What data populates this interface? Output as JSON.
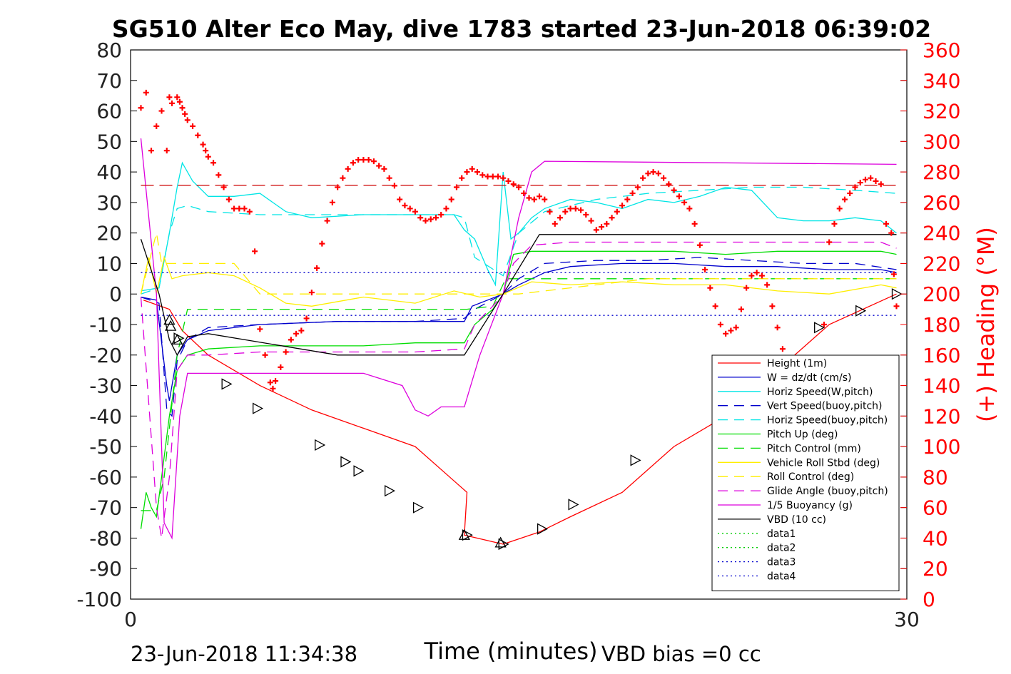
{
  "chart_data": {
    "type": "line",
    "title": "SG510 Alter Eco May, dive 1783 started 23-Jun-2018 06:39:02",
    "xlabel": "Time (minutes)",
    "ylabel_right": "(+) Heading (°M)",
    "xlim": [
      0,
      30
    ],
    "ylim_left": [
      -100,
      80
    ],
    "ylim_right": [
      0,
      360
    ],
    "x_ticks": [
      "0",
      "30"
    ],
    "y_ticks_left": [
      "80",
      "70",
      "60",
      "50",
      "40",
      "30",
      "20",
      "10",
      "0",
      "-10",
      "-20",
      "-30",
      "-40",
      "-50",
      "-60",
      "-70",
      "-80",
      "-90",
      "-100"
    ],
    "y_ticks_right": [
      "360",
      "340",
      "320",
      "300",
      "280",
      "260",
      "240",
      "220",
      "200",
      "180",
      "160",
      "140",
      "120",
      "100",
      "80",
      "60",
      "40",
      "20",
      "0"
    ],
    "footer_left": "23-Jun-2018 11:34:38",
    "footer_right": "VBD bias =0 cc",
    "colors": {
      "height": "#ff0000",
      "w": "#0000cc",
      "horiz_speed": "#00e5e5",
      "pitch_up": "#00dd00",
      "vehicle_roll": "#ffee00",
      "glide_angle": "#dd00dd",
      "buoyancy": "#dd00dd",
      "vbd": "#000000",
      "heading": "#ff0000",
      "data_blue": "#0000cc",
      "data_green": "#00cc00"
    },
    "series": [
      {
        "name": "Height (1m)",
        "color": "#ff0000",
        "dash": "none",
        "x": [
          0.5,
          1.5,
          2.0,
          3.0,
          5.0,
          7.0,
          9.0,
          11.0,
          13.0,
          12.9,
          14.4,
          15.8,
          17.0,
          19.0,
          21.0,
          23.0,
          25.0,
          27.0,
          29.6
        ],
        "y": [
          -2,
          -5,
          -12,
          -20,
          -30,
          -38,
          -44,
          -50,
          -65,
          -79,
          -82,
          -78,
          -73,
          -65,
          -50,
          -40,
          -25,
          -10,
          0
        ]
      },
      {
        "name": "W = dz/dt (cm/s)",
        "color": "#0000cc",
        "dash": "none",
        "x": [
          0.4,
          1.0,
          1.4,
          1.5,
          1.8,
          2.2,
          3.0,
          5.0,
          8.0,
          10.0,
          12.0,
          12.9,
          13.2,
          14.4,
          15.0,
          16.0,
          17.0,
          19.0,
          21.0,
          23.0,
          25.0,
          27.0,
          29.0,
          29.6
        ],
        "y": [
          -1,
          -2,
          -30,
          -35,
          -20,
          -15,
          -12,
          -10,
          -9,
          -9,
          -9,
          -9,
          -4,
          0,
          3,
          7,
          9,
          10,
          10,
          9,
          9,
          8,
          8,
          7
        ]
      },
      {
        "name": "Horiz Speed(W,pitch)",
        "color": "#00e5e5",
        "dash": "none",
        "x": [
          0.4,
          1.1,
          1.5,
          1.8,
          2.0,
          2.4,
          3.0,
          4.0,
          5.0,
          6.0,
          7.0,
          9.0,
          11.0,
          12.5,
          12.9,
          13.3,
          13.8,
          14.1,
          14.4,
          14.7,
          15.0,
          15.5,
          16.0,
          17.0,
          18.0,
          19.0,
          20.0,
          21.0,
          22.0,
          23.0,
          24.0,
          25.0,
          26.0,
          27.0,
          28.0,
          29.0,
          29.6
        ],
        "y": [
          1,
          2,
          20,
          35,
          43,
          37,
          32,
          32,
          33,
          27,
          25,
          26,
          26,
          26,
          21,
          18,
          8,
          3,
          40,
          18,
          20,
          25,
          28,
          31,
          30,
          28,
          31,
          30,
          32,
          35,
          34,
          25,
          24,
          24,
          25,
          24,
          20
        ]
      },
      {
        "name": "Vert Speed(buoy,pitch)",
        "color": "#0000cc",
        "dash": "dashed",
        "x": [
          0.4,
          1.1,
          1.4,
          1.6,
          1.8,
          2.2,
          3.0,
          5.0,
          8.0,
          11.0,
          12.9,
          13.3,
          14.4,
          15.0,
          16.0,
          18.0,
          20.0,
          22.0,
          24.0,
          26.0,
          28.0,
          29.6
        ],
        "y": [
          -1,
          -3,
          -38,
          -40,
          -22,
          -15,
          -11,
          -10,
          -9,
          -9,
          -8,
          -5,
          0,
          5,
          10,
          11,
          11,
          12,
          11,
          10,
          10,
          8
        ]
      },
      {
        "name": "Horiz Speed(buoy,pitch)",
        "color": "#00e5e5",
        "dash": "dashed",
        "x": [
          0.4,
          1.1,
          1.5,
          1.8,
          2.2,
          3.0,
          5.0,
          7.0,
          9.0,
          11.0,
          12.5,
          12.9,
          13.3,
          14.4,
          15.0,
          16.0,
          18.0,
          20.0,
          22.0,
          24.0,
          26.0,
          28.0,
          29.6
        ],
        "y": [
          0,
          2,
          20,
          28,
          29,
          27,
          26,
          26,
          26,
          26,
          26,
          25,
          12,
          6,
          20,
          27,
          31,
          33,
          34,
          35,
          35,
          34,
          33
        ]
      },
      {
        "name": "Pitch Up (deg)",
        "color": "#00dd00",
        "dash": "none",
        "x": [
          0.4,
          0.6,
          0.8,
          1.0,
          1.2,
          1.5,
          1.8,
          2.2,
          3.0,
          5.0,
          7.0,
          9.0,
          11.0,
          12.9,
          13.3,
          14.0,
          14.4,
          14.8,
          15.5,
          17.0,
          19.0,
          21.0,
          23.0,
          25.0,
          27.0,
          29.0,
          29.6
        ],
        "y": [
          -77,
          -65,
          -70,
          -73,
          -60,
          -40,
          -25,
          -20,
          -18,
          -17,
          -17,
          -17,
          -16,
          -16,
          -10,
          -5,
          0,
          13,
          14,
          14,
          14,
          14,
          13,
          14,
          14,
          14,
          13
        ]
      },
      {
        "name": "Pitch Control (mm)",
        "color": "#00dd00",
        "dash": "dashed",
        "x": [
          0.4,
          1.0,
          1.3,
          1.8,
          2.2,
          13.0,
          14.0,
          14.5,
          29.6
        ],
        "y": [
          -71,
          -71,
          -60,
          -20,
          -5,
          -5,
          -4,
          5,
          5
        ]
      },
      {
        "name": "Vehicle Roll Stbd (deg)",
        "color": "#ffee00",
        "dash": "none",
        "x": [
          0.4,
          0.7,
          1.0,
          1.3,
          1.6,
          2.0,
          3.0,
          4.0,
          5.0,
          6.0,
          7.0,
          9.0,
          11.0,
          12.5,
          13.5,
          14.4,
          15.5,
          17.0,
          19.0,
          21.0,
          23.0,
          25.0,
          27.0,
          29.0,
          29.6
        ],
        "y": [
          0,
          12,
          0,
          12,
          5,
          6,
          7,
          6,
          2,
          -3,
          -4,
          -1,
          -3,
          1,
          -1,
          0,
          4,
          3,
          4,
          3,
          3,
          1,
          0,
          3,
          2
        ]
      },
      {
        "name": "Roll Control (deg)",
        "color": "#ffee00",
        "dash": "dashed",
        "x": [
          0.4,
          1.0,
          1.2,
          2.0,
          3.0,
          4.0,
          5.0,
          8.0,
          10.0,
          12.0,
          13.0,
          15.0,
          20.0,
          25.0,
          29.6
        ],
        "y": [
          0,
          20,
          10,
          10,
          10,
          10,
          0,
          0,
          0,
          0,
          0,
          0,
          5,
          5,
          5
        ]
      },
      {
        "name": "Glide Angle (buoy,pitch)",
        "color": "#dd00dd",
        "dash": "dashed",
        "x": [
          0.4,
          1.0,
          1.2,
          1.5,
          1.8,
          2.2,
          3.0,
          5.0,
          8.0,
          11.0,
          12.9,
          13.3,
          14.0,
          14.4,
          14.8,
          15.5,
          17.0,
          20.0,
          23.0,
          26.0,
          29.0,
          29.6
        ],
        "y": [
          -1,
          -70,
          -80,
          -60,
          -25,
          -20,
          -20,
          -19,
          -19,
          -19,
          -18,
          -10,
          -4,
          0,
          10,
          16,
          17,
          17,
          17,
          17,
          17,
          15
        ]
      },
      {
        "name": "1/5 Buoyancy (g)",
        "color": "#dd00dd",
        "dash": "none",
        "x": [
          0.4,
          1.0,
          1.3,
          1.6,
          1.9,
          2.2,
          3.0,
          6.0,
          9.0,
          10.5,
          11.0,
          11.5,
          12.0,
          12.9,
          13.5,
          14.4,
          15.0,
          15.5,
          16.0,
          29.6
        ],
        "y": [
          51,
          0,
          -75,
          -80,
          -40,
          -26,
          -26,
          -26,
          -26,
          -30,
          -38,
          -40,
          -37,
          -37,
          -20,
          0,
          25,
          40,
          43.5,
          42.5
        ]
      },
      {
        "name": "VBD (10 cc)",
        "color": "#000000",
        "dash": "none",
        "x": [
          0.4,
          1.1,
          1.5,
          1.8,
          2.0,
          2.2,
          3.0,
          8.0,
          12.9,
          14.4,
          15.8,
          29.6
        ],
        "y": [
          18,
          0,
          -15,
          -20,
          -17,
          -14,
          -13,
          -20,
          -20,
          0,
          19.5,
          19.5
        ]
      },
      {
        "name": "data1",
        "color": "#00cc00",
        "dash": "dotted",
        "x": [],
        "y": []
      },
      {
        "name": "data2",
        "color": "#00cc00",
        "dash": "dotted",
        "x": [],
        "y": []
      },
      {
        "name": "data3",
        "color": "#0000cc",
        "dash": "dotted",
        "x": [
          0.4,
          29.6
        ],
        "y": [
          7,
          7
        ]
      },
      {
        "name": "data4",
        "color": "#0000cc",
        "dash": "dotted",
        "x": [
          0.4,
          29.6
        ],
        "y": [
          -7,
          -7
        ]
      }
    ],
    "extra": [
      {
        "color": "#cc0000",
        "dash": "longdash",
        "x": [
          0.4,
          29.6
        ],
        "y": [
          35.6,
          35.6
        ]
      }
    ],
    "triangles_up": [
      [
        1.5,
        -8.5
      ],
      [
        1.55,
        -10.5
      ],
      [
        1.8,
        -15
      ],
      [
        12.9,
        -79
      ],
      [
        14.3,
        -81.5
      ]
    ],
    "triangles_right": [
      [
        1.85,
        -14.5
      ],
      [
        3.7,
        -29.5
      ],
      [
        4.9,
        -37.5
      ],
      [
        7.3,
        -49.5
      ],
      [
        8.3,
        -55
      ],
      [
        8.8,
        -58
      ],
      [
        10.0,
        -64.5
      ],
      [
        11.1,
        -70
      ],
      [
        13.0,
        -79
      ],
      [
        14.4,
        -82
      ],
      [
        15.9,
        -77
      ],
      [
        17.1,
        -69
      ],
      [
        19.5,
        -54.5
      ],
      [
        26.6,
        -11
      ],
      [
        28.2,
        -5.5
      ],
      [
        29.6,
        0
      ]
    ],
    "heading_points": [
      [
        0.4,
        322
      ],
      [
        0.6,
        332
      ],
      [
        0.8,
        294
      ],
      [
        1.0,
        310
      ],
      [
        1.2,
        320
      ],
      [
        1.4,
        294
      ],
      [
        1.5,
        329
      ],
      [
        1.6,
        325
      ],
      [
        1.8,
        329
      ],
      [
        1.9,
        326
      ],
      [
        2.0,
        322
      ],
      [
        2.1,
        318
      ],
      [
        2.2,
        314
      ],
      [
        2.4,
        310
      ],
      [
        2.6,
        304
      ],
      [
        2.8,
        298
      ],
      [
        2.9,
        294
      ],
      [
        3.0,
        290
      ],
      [
        3.2,
        286
      ],
      [
        3.4,
        278
      ],
      [
        3.6,
        270
      ],
      [
        3.8,
        262
      ],
      [
        4.0,
        256
      ],
      [
        4.2,
        256
      ],
      [
        4.4,
        256
      ],
      [
        4.6,
        254
      ],
      [
        4.8,
        228
      ],
      [
        5.0,
        177
      ],
      [
        5.2,
        160
      ],
      [
        5.4,
        142
      ],
      [
        5.5,
        138
      ],
      [
        5.6,
        143
      ],
      [
        5.8,
        152
      ],
      [
        6.0,
        162
      ],
      [
        6.2,
        170
      ],
      [
        6.4,
        174
      ],
      [
        6.6,
        176
      ],
      [
        6.8,
        184
      ],
      [
        7.0,
        201
      ],
      [
        7.2,
        217
      ],
      [
        7.4,
        233
      ],
      [
        7.6,
        248
      ],
      [
        7.8,
        260
      ],
      [
        8.0,
        270
      ],
      [
        8.2,
        276
      ],
      [
        8.4,
        282
      ],
      [
        8.6,
        286
      ],
      [
        8.8,
        288
      ],
      [
        9.0,
        288
      ],
      [
        9.2,
        288
      ],
      [
        9.4,
        287
      ],
      [
        9.6,
        284
      ],
      [
        9.8,
        282
      ],
      [
        10.0,
        276
      ],
      [
        10.2,
        271
      ],
      [
        10.4,
        262
      ],
      [
        10.6,
        258
      ],
      [
        10.8,
        256
      ],
      [
        11.0,
        254
      ],
      [
        11.2,
        250
      ],
      [
        11.4,
        248
      ],
      [
        11.6,
        249
      ],
      [
        11.8,
        250
      ],
      [
        12.0,
        252
      ],
      [
        12.2,
        256
      ],
      [
        12.4,
        262
      ],
      [
        12.6,
        270
      ],
      [
        12.8,
        276
      ],
      [
        13.0,
        280
      ],
      [
        13.2,
        282
      ],
      [
        13.4,
        280
      ],
      [
        13.6,
        278
      ],
      [
        13.8,
        277
      ],
      [
        14.0,
        277
      ],
      [
        14.2,
        277
      ],
      [
        14.4,
        276
      ],
      [
        14.6,
        274
      ],
      [
        14.8,
        272
      ],
      [
        15.0,
        270
      ],
      [
        15.2,
        266
      ],
      [
        15.4,
        263
      ],
      [
        15.6,
        262
      ],
      [
        15.8,
        264
      ],
      [
        16.0,
        262
      ],
      [
        16.2,
        254
      ],
      [
        16.4,
        246
      ],
      [
        16.6,
        250
      ],
      [
        16.8,
        254
      ],
      [
        17.0,
        256
      ],
      [
        17.2,
        256
      ],
      [
        17.4,
        255
      ],
      [
        17.6,
        252
      ],
      [
        17.8,
        248
      ],
      [
        18.0,
        242
      ],
      [
        18.2,
        244
      ],
      [
        18.4,
        246
      ],
      [
        18.6,
        250
      ],
      [
        18.8,
        254
      ],
      [
        19.0,
        258
      ],
      [
        19.2,
        262
      ],
      [
        19.4,
        266
      ],
      [
        19.6,
        270
      ],
      [
        19.8,
        276
      ],
      [
        20.0,
        279
      ],
      [
        20.2,
        280
      ],
      [
        20.4,
        279
      ],
      [
        20.6,
        276
      ],
      [
        20.8,
        272
      ],
      [
        21.0,
        268
      ],
      [
        21.2,
        264
      ],
      [
        21.4,
        260
      ],
      [
        21.6,
        256
      ],
      [
        21.8,
        246
      ],
      [
        22.0,
        232
      ],
      [
        22.2,
        216
      ],
      [
        22.4,
        204
      ],
      [
        22.6,
        192
      ],
      [
        22.8,
        180
      ],
      [
        23.0,
        174
      ],
      [
        23.2,
        176
      ],
      [
        23.4,
        178
      ],
      [
        23.6,
        190
      ],
      [
        23.8,
        204
      ],
      [
        24.0,
        212
      ],
      [
        24.2,
        214
      ],
      [
        24.4,
        212
      ],
      [
        24.6,
        206
      ],
      [
        24.8,
        192
      ],
      [
        25.0,
        178
      ],
      [
        25.2,
        164
      ],
      [
        25.4,
        150
      ],
      [
        25.6,
        138
      ],
      [
        25.8,
        128
      ],
      [
        26.0,
        127
      ],
      [
        26.2,
        131
      ],
      [
        26.4,
        140
      ],
      [
        26.6,
        158
      ],
      [
        26.8,
        180
      ],
      [
        27.0,
        234
      ],
      [
        27.2,
        246
      ],
      [
        27.4,
        256
      ],
      [
        27.6,
        262
      ],
      [
        27.8,
        266
      ],
      [
        28.0,
        270
      ],
      [
        28.2,
        273
      ],
      [
        28.4,
        275
      ],
      [
        28.6,
        276
      ],
      [
        28.8,
        274
      ],
      [
        29.0,
        272
      ],
      [
        29.2,
        246
      ],
      [
        29.4,
        240
      ],
      [
        29.5,
        213
      ],
      [
        29.6,
        192
      ]
    ],
    "legend_placement": "bottom-right",
    "grid": false
  }
}
